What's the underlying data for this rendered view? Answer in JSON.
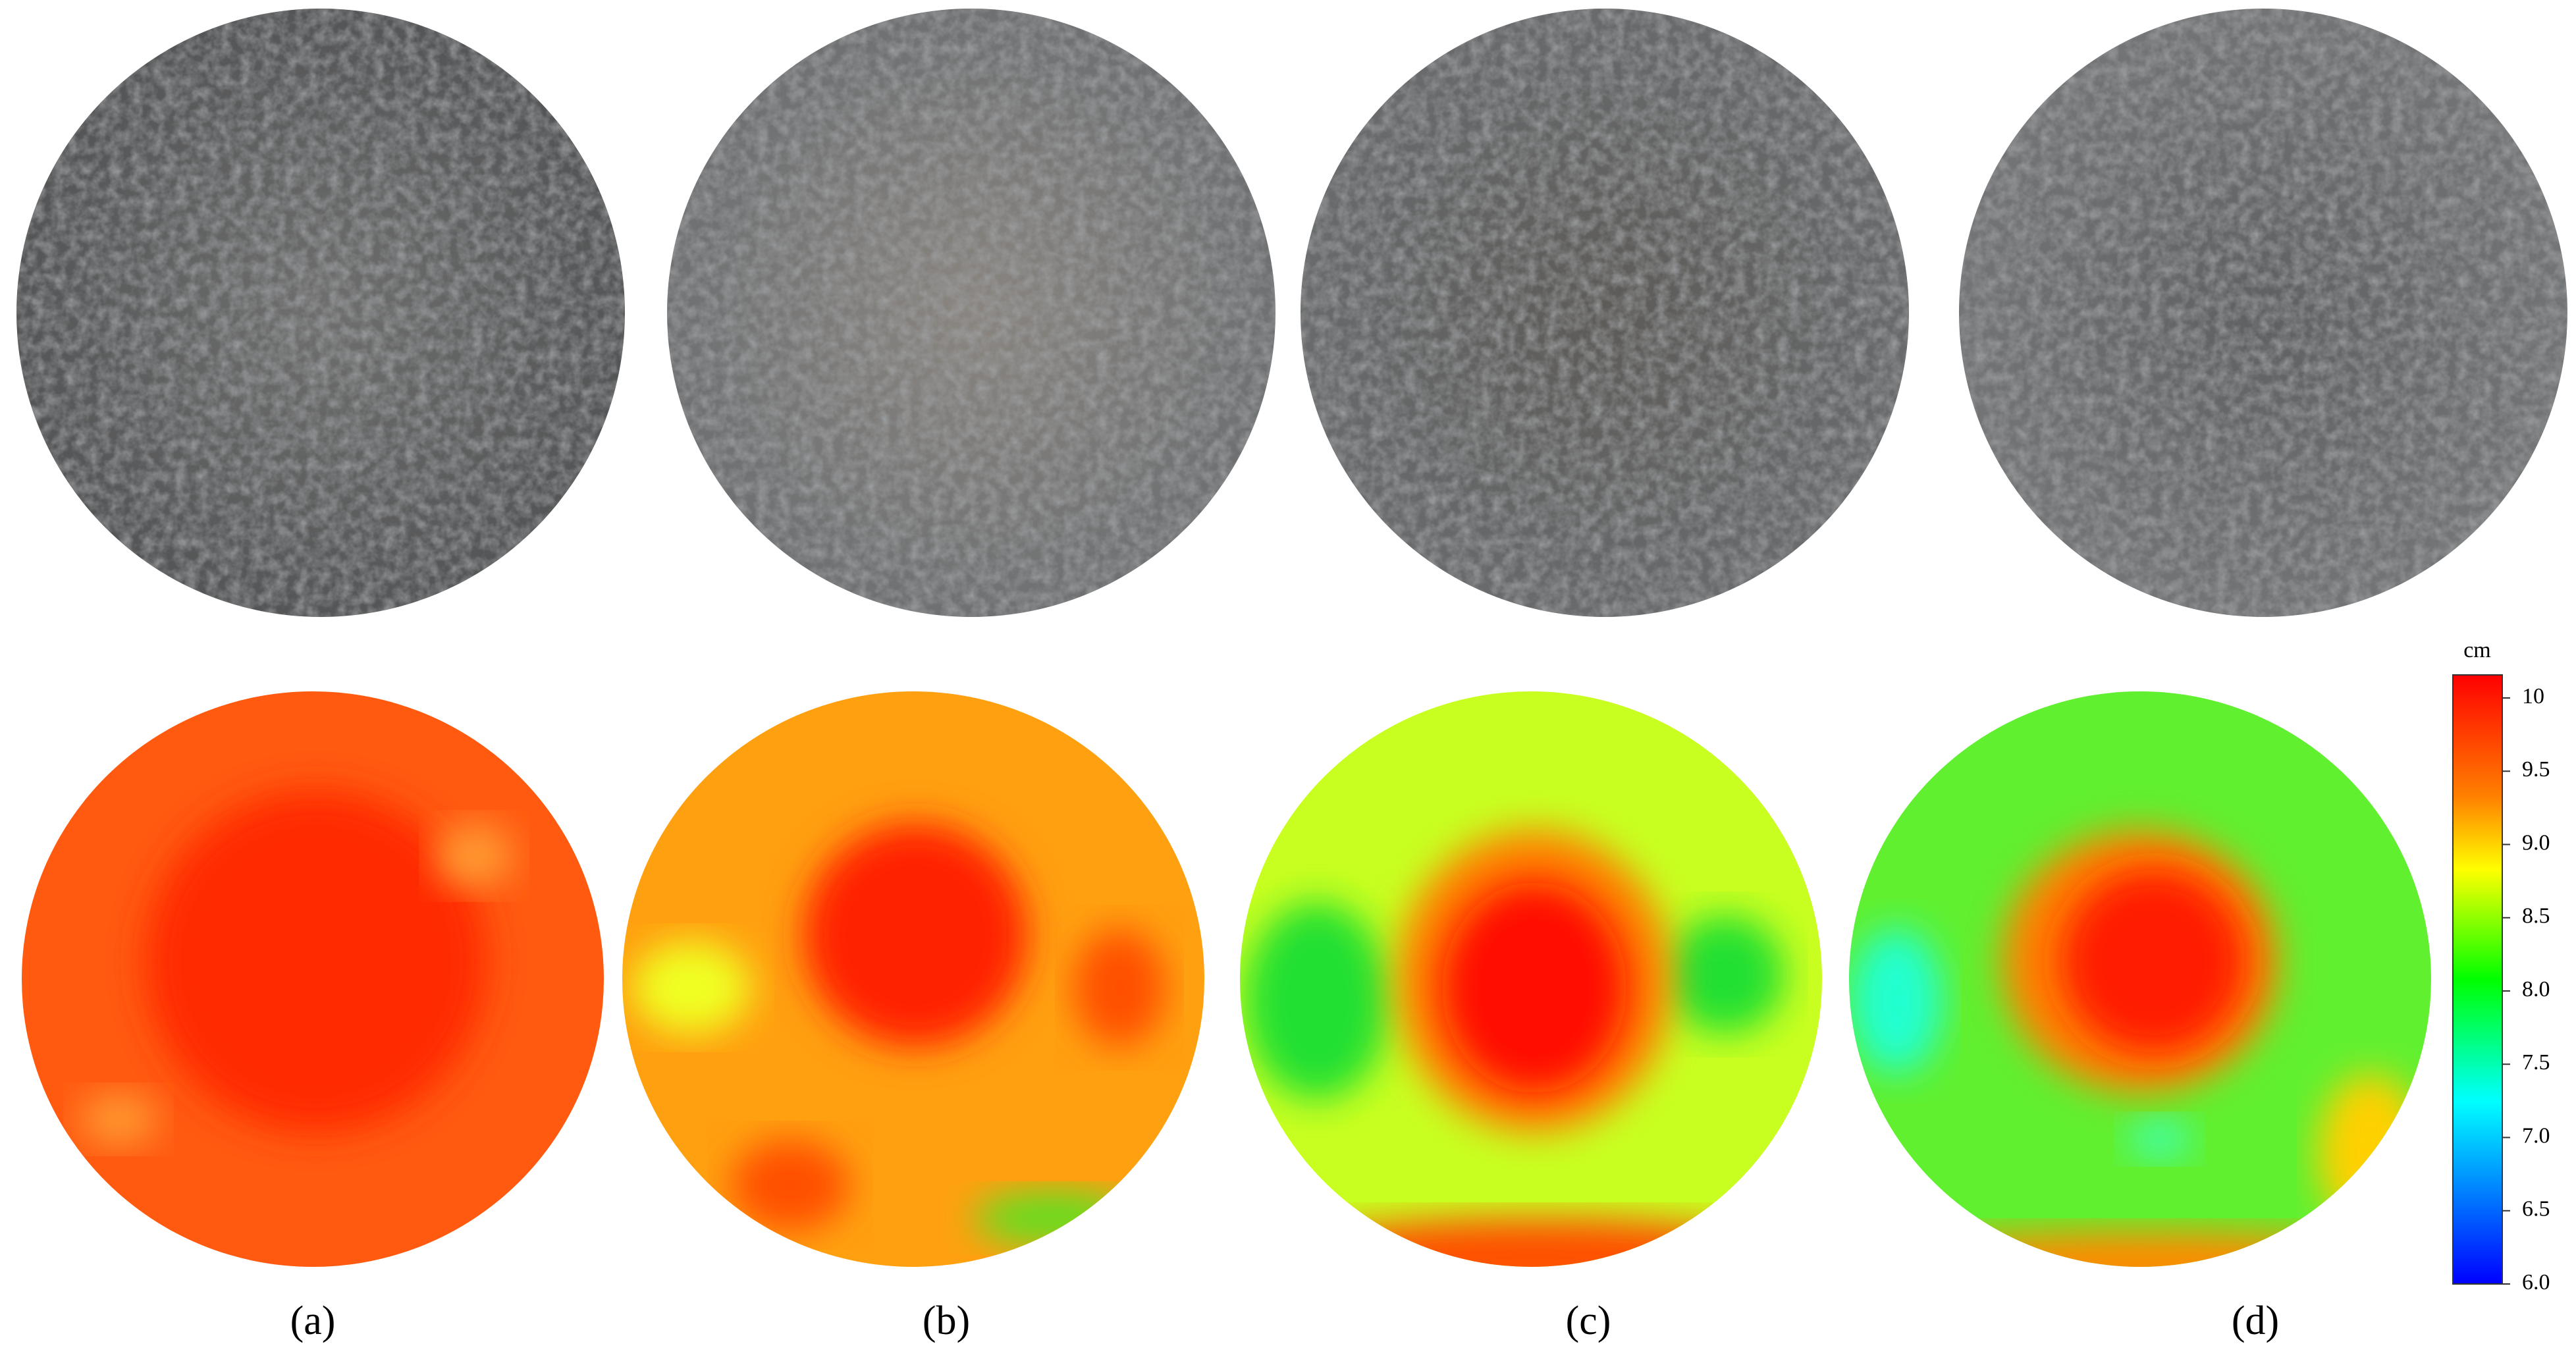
{
  "panels": [
    {
      "label": "(a)"
    },
    {
      "label": "(b)"
    },
    {
      "label": "(c)"
    },
    {
      "label": "(d)"
    }
  ],
  "colorbar": {
    "unit": "cm",
    "ticks": [
      "10",
      "9.5",
      "9.0",
      "8.5",
      "8.0",
      "7.5",
      "7.0",
      "6.5",
      "6.0"
    ]
  }
}
